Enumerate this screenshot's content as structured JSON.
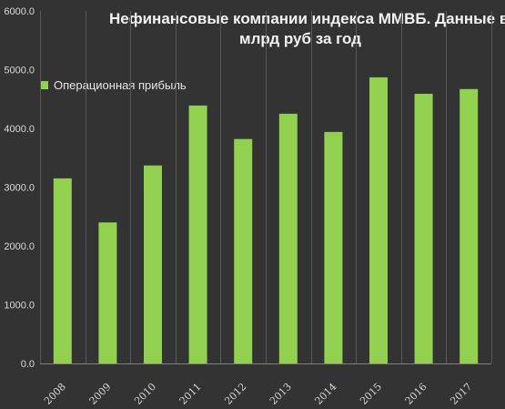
{
  "chart_data": {
    "type": "bar",
    "title_lines": [
      "Нефинансовые компании индекса ММВБ. Данные в",
      "млрд руб за год"
    ],
    "categories": [
      "2008",
      "2009",
      "2010",
      "2011",
      "2012",
      "2013",
      "2014",
      "2015",
      "2016",
      "2017"
    ],
    "series": [
      {
        "name": "Операционная прибыль",
        "values": [
          3150,
          2400,
          3370,
          4390,
          3820,
          4250,
          3940,
          4870,
          4590,
          4670
        ]
      }
    ],
    "y_ticks": [
      "0.0",
      "1000.0",
      "2000.0",
      "3000.0",
      "4000.0",
      "5000.0",
      "6000.0"
    ],
    "ylim": [
      0,
      6000
    ],
    "grid": "vertical",
    "legend_position": "top-left",
    "colors": {
      "bar": "#92d050",
      "background": "#333333",
      "grid": "#595959",
      "text": "#d9d9d9"
    }
  }
}
